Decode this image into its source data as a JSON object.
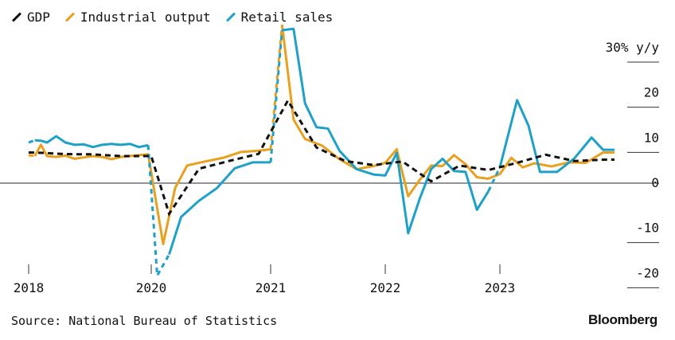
{
  "legend": [
    {
      "label": "GDP",
      "color": "#111111",
      "dashed": true
    },
    {
      "label": "Industrial output",
      "color": "#e8a01e",
      "dashed": false
    },
    {
      "label": "Retail sales",
      "color": "#1ea1c8",
      "dashed": false
    }
  ],
  "source": "Source: National Bureau of Statistics",
  "brand": "Bloomberg",
  "chart_data": {
    "type": "line",
    "x_axis": {
      "min": 2018.0,
      "max": 2024.1,
      "ticks": [
        2018,
        2020,
        2021,
        2022,
        2023
      ],
      "tick_labels": [
        "2018",
        "2020",
        "2021",
        "2022",
        "2023"
      ]
    },
    "y_axis": {
      "min": -22,
      "max": 32,
      "ticks": [
        30,
        20,
        10,
        0,
        -10,
        -20
      ],
      "tick_labels": [
        "30% y/y",
        "20",
        "10",
        "0",
        "-10",
        "-20"
      ],
      "side": "right",
      "zero_line": true
    },
    "series": [
      {
        "name": "GDP",
        "color": "#111111",
        "style": "dashed",
        "x": [
          2018.0,
          2018.25,
          2018.5,
          2018.75,
          2019.0,
          2019.25,
          2019.5,
          2019.75,
          2020.0,
          2020.15,
          2020.4,
          2020.65,
          2020.9,
          2021.15,
          2021.4,
          2021.65,
          2021.9,
          2022.15,
          2022.4,
          2022.65,
          2022.9,
          2023.15,
          2023.4,
          2023.65,
          2023.9,
          2024.0
        ],
        "y": [
          6.8,
          6.7,
          6.5,
          6.4,
          6.4,
          6.2,
          6.0,
          6.0,
          6.0,
          -6.8,
          3.2,
          4.9,
          6.5,
          18.3,
          7.9,
          4.9,
          4.0,
          4.8,
          0.4,
          3.9,
          2.9,
          4.5,
          6.3,
          4.9,
          5.2,
          5.2
        ]
      },
      {
        "name": "Industrial output",
        "color": "#e8a01e",
        "style": "solid",
        "dashed_to": 2018.1,
        "dashed_from": 2021.0,
        "dashed_until": 2021.1,
        "x": [
          2018.0,
          2018.1,
          2018.2,
          2018.3,
          2018.45,
          2018.6,
          2018.75,
          2018.9,
          2019.05,
          2019.2,
          2019.35,
          2019.5,
          2019.65,
          2019.8,
          2019.95,
          2020.1,
          2020.2,
          2020.3,
          2020.45,
          2020.6,
          2020.75,
          2020.9,
          2021.0,
          2021.1,
          2021.2,
          2021.3,
          2021.45,
          2021.6,
          2021.75,
          2021.9,
          2022.0,
          2022.1,
          2022.2,
          2022.3,
          2022.4,
          2022.5,
          2022.6,
          2022.7,
          2022.8,
          2022.9,
          2023.0,
          2023.1,
          2023.2,
          2023.3,
          2023.45,
          2023.6,
          2023.75,
          2023.9,
          2024.0
        ],
        "y": [
          6.2,
          6.0,
          8.5,
          6.0,
          5.8,
          6.1,
          5.4,
          5.7,
          6.0,
          5.8,
          5.3,
          5.8,
          6.0,
          6.2,
          6.4,
          -13.5,
          -1.1,
          3.9,
          4.8,
          5.6,
          6.9,
          7.2,
          7.5,
          35.1,
          14.1,
          9.8,
          8.3,
          5.3,
          3.1,
          3.8,
          4.5,
          7.5,
          -2.9,
          0.7,
          3.9,
          3.8,
          6.2,
          4.2,
          1.3,
          1.0,
          2.0,
          5.6,
          3.5,
          4.4,
          3.7,
          4.6,
          4.5,
          6.8,
          6.8
        ]
      },
      {
        "name": "Retail sales",
        "color": "#1ea1c8",
        "style": "solid",
        "dashed_to": 2018.1,
        "dashed_from": 2021.0,
        "dashed_until": 2021.1,
        "x": [
          2018.0,
          2018.1,
          2018.2,
          2018.3,
          2018.45,
          2018.6,
          2018.75,
          2018.9,
          2019.05,
          2019.2,
          2019.35,
          2019.5,
          2019.65,
          2019.8,
          2019.95,
          2020.05,
          2020.15,
          2020.25,
          2020.4,
          2020.55,
          2020.7,
          2020.85,
          2021.0,
          2021.1,
          2021.2,
          2021.3,
          2021.4,
          2021.5,
          2021.6,
          2021.75,
          2021.9,
          2022.0,
          2022.1,
          2022.2,
          2022.3,
          2022.4,
          2022.5,
          2022.6,
          2022.7,
          2022.8,
          2022.9,
          2023.0,
          2023.15,
          2023.25,
          2023.35,
          2023.5,
          2023.65,
          2023.8,
          2023.9,
          2024.0
        ],
        "y": [
          9.0,
          9.5,
          9.4,
          9.0,
          10.4,
          9.0,
          8.5,
          8.6,
          8.0,
          8.5,
          8.7,
          8.5,
          8.7,
          8.0,
          8.4,
          -20.5,
          -15.8,
          -7.5,
          -3.9,
          -1.1,
          3.3,
          4.6,
          4.6,
          33.9,
          34.2,
          17.7,
          12.4,
          12.1,
          7.2,
          3.1,
          1.9,
          1.7,
          6.7,
          -11.1,
          -3.5,
          3.1,
          5.4,
          2.7,
          2.5,
          -5.9,
          -1.8,
          3.5,
          18.4,
          12.7,
          2.5,
          2.5,
          5.5,
          10.1,
          7.4,
          7.4
        ]
      }
    ]
  }
}
